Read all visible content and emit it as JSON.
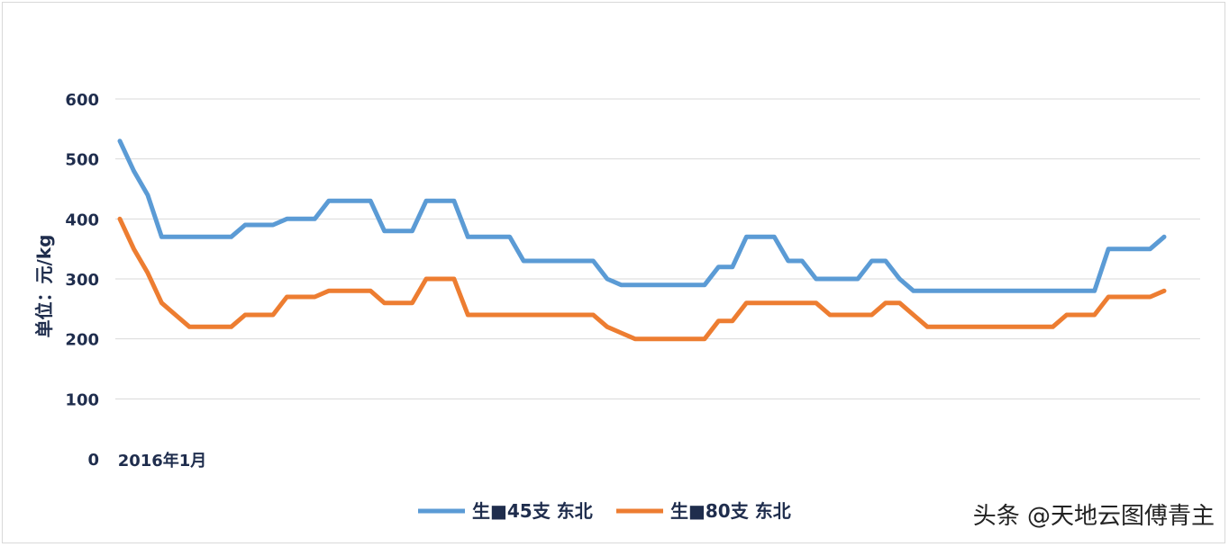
{
  "chart_data": {
    "type": "line",
    "ylabel": "单位：元/kg",
    "ylim": [
      0,
      600
    ],
    "yticks": [
      "0",
      "100",
      "200",
      "300",
      "400",
      "500",
      "600"
    ],
    "x_label_first": "2016年1月",
    "grid": true,
    "legend_position": "bottom",
    "colors": [
      "#5b9bd5",
      "#ed7d31"
    ],
    "series": [
      {
        "name": "生■45支 东北",
        "values": [
          530,
          480,
          440,
          370,
          370,
          370,
          370,
          370,
          370,
          390,
          390,
          390,
          400,
          400,
          400,
          430,
          430,
          430,
          430,
          380,
          380,
          380,
          430,
          430,
          430,
          370,
          370,
          370,
          370,
          330,
          330,
          330,
          330,
          330,
          330,
          300,
          290,
          290,
          290,
          290,
          290,
          290,
          290,
          320,
          320,
          370,
          370,
          370,
          330,
          330,
          300,
          300,
          300,
          300,
          330,
          330,
          300,
          280,
          280,
          280,
          280,
          280,
          280,
          280,
          280,
          280,
          280,
          280,
          280,
          280,
          280,
          350,
          350,
          350,
          350,
          370
        ]
      },
      {
        "name": "生■80支 东北",
        "values": [
          400,
          350,
          310,
          260,
          240,
          220,
          220,
          220,
          220,
          240,
          240,
          240,
          270,
          270,
          270,
          280,
          280,
          280,
          280,
          260,
          260,
          260,
          300,
          300,
          300,
          240,
          240,
          240,
          240,
          240,
          240,
          240,
          240,
          240,
          240,
          220,
          210,
          200,
          200,
          200,
          200,
          200,
          200,
          230,
          230,
          260,
          260,
          260,
          260,
          260,
          260,
          240,
          240,
          240,
          240,
          260,
          260,
          240,
          220,
          220,
          220,
          220,
          220,
          220,
          220,
          220,
          220,
          220,
          240,
          240,
          240,
          270,
          270,
          270,
          270,
          280
        ]
      }
    ]
  },
  "watermark": "头条 @天地云图傅青主"
}
